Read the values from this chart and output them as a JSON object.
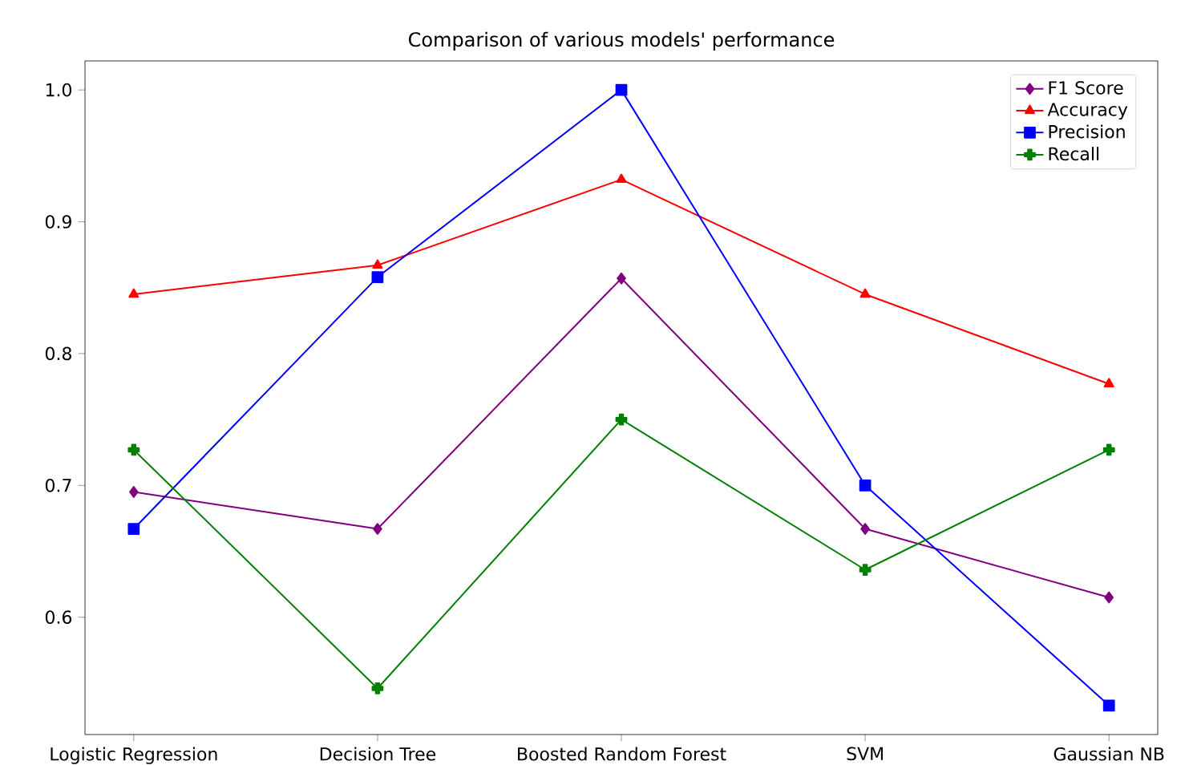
{
  "chart_data": {
    "type": "line",
    "title": "Comparison of various models' performance",
    "categories": [
      "Logistic Regression",
      "Decision Tree",
      "Boosted Random Forest",
      "SVM",
      "Gaussian NB"
    ],
    "series": [
      {
        "name": "F1 Score",
        "color": "#800080",
        "marker": "diamond",
        "values": [
          0.695,
          0.667,
          0.857,
          0.667,
          0.615
        ]
      },
      {
        "name": "Accuracy",
        "color": "#ff0000",
        "marker": "triangle",
        "values": [
          0.845,
          0.867,
          0.932,
          0.845,
          0.777
        ]
      },
      {
        "name": "Precision",
        "color": "#0000ff",
        "marker": "square",
        "values": [
          0.667,
          0.858,
          1.0,
          0.7,
          0.533
        ]
      },
      {
        "name": "Recall",
        "color": "#008000",
        "marker": "cross",
        "values": [
          0.727,
          0.546,
          0.75,
          0.636,
          0.727
        ]
      }
    ],
    "ylim": [
      0.511,
      1.022
    ],
    "yticks": [
      {
        "value": 0.6,
        "label": "0.6"
      },
      {
        "value": 0.7,
        "label": "0.7"
      },
      {
        "value": 0.8,
        "label": "0.8"
      },
      {
        "value": 0.9,
        "label": "0.9"
      },
      {
        "value": 1.0,
        "label": "1.0"
      }
    ],
    "legend": "top right",
    "grid": false,
    "line_style": "solid"
  }
}
